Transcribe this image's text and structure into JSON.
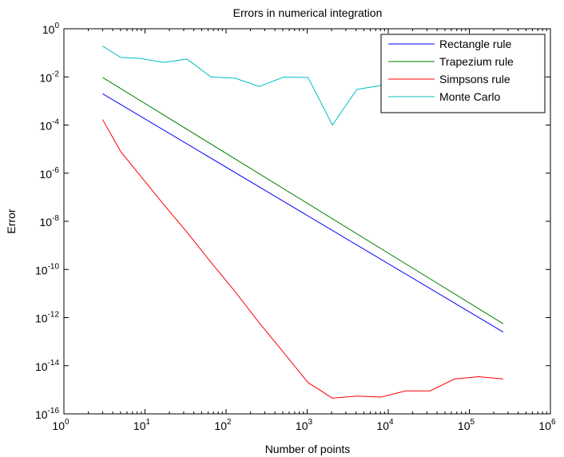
{
  "chart_data": {
    "type": "line",
    "title": "Errors in numerical integration",
    "xlabel": "Number of points",
    "ylabel": "Error",
    "x_scale": "log",
    "y_scale": "log",
    "xlim": [
      1,
      1000000
    ],
    "ylim": [
      1e-16,
      1
    ],
    "x_tick_base": "10",
    "x_tick_exponents": [
      "0",
      "1",
      "2",
      "3",
      "4",
      "5",
      "6"
    ],
    "y_tick_base": "10",
    "y_tick_exponents": [
      "-16",
      "-14",
      "-12",
      "-10",
      "-8",
      "-6",
      "-4",
      "-2",
      "0"
    ],
    "grid": false,
    "legend_position": "top-right",
    "series": [
      {
        "name": "Rectangle rule",
        "color": "#0000ff",
        "x": [
          3,
          262144
        ],
        "y": [
          0.002,
          2.5e-13
        ]
      },
      {
        "name": "Trapezium rule",
        "color": "#008000",
        "x": [
          3,
          262144
        ],
        "y": [
          0.0095,
          5.5e-13
        ]
      },
      {
        "name": "Simpsons rule",
        "color": "#ff0000",
        "x": [
          3,
          5,
          9,
          17,
          33,
          65,
          129,
          257,
          513,
          1025,
          2049,
          4097,
          8193,
          16385,
          32769,
          65537,
          131073,
          262145
        ],
        "y": [
          0.00017,
          8e-06,
          7e-07,
          5e-08,
          3.5e-09,
          2e-10,
          1.2e-11,
          6e-13,
          3.5e-14,
          2e-15,
          4.5e-16,
          5.5e-16,
          5e-16,
          9e-16,
          9e-16,
          2.8e-15,
          3.5e-15,
          2.8e-15
        ]
      },
      {
        "name": "Monte Carlo",
        "color": "#00bfbf",
        "x": [
          3,
          5,
          9,
          17,
          33,
          65,
          129,
          257,
          513,
          1025,
          2049,
          4097,
          8193,
          16385
        ],
        "y": [
          0.19,
          0.065,
          0.058,
          0.04,
          0.055,
          0.01,
          0.0088,
          0.004,
          0.0098,
          0.0095,
          0.0001,
          0.003,
          0.0045,
          0.0055
        ]
      }
    ]
  }
}
